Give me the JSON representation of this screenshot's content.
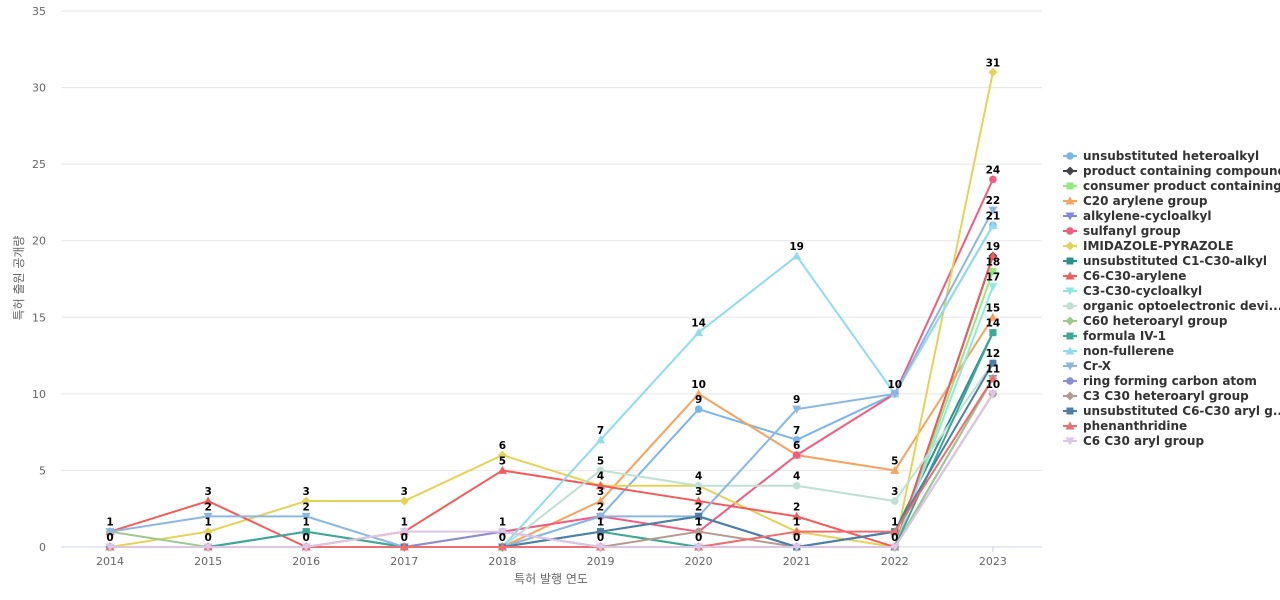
{
  "chart_data": {
    "type": "line",
    "title": "",
    "xlabel": "특허 발행 연도",
    "ylabel": "특허 출원 공개량",
    "x": [
      "2014",
      "2015",
      "2016",
      "2017",
      "2018",
      "2019",
      "2020",
      "2021",
      "2022",
      "2023"
    ],
    "ylim": [
      0,
      35
    ],
    "yticks": [
      0,
      5,
      10,
      15,
      20,
      25,
      30,
      35
    ],
    "grid": true,
    "legend": "right",
    "series": [
      {
        "name": "unsubstituted heteroalkyl",
        "color": "#7cb5ec",
        "marker": "circle",
        "values": [
          0,
          0,
          0,
          0,
          0,
          2,
          9,
          7,
          10,
          21
        ]
      },
      {
        "name": "product containing compound",
        "color": "#434348",
        "marker": "diamond",
        "values": [
          0,
          0,
          0,
          0,
          0,
          0,
          0,
          0,
          0,
          19
        ]
      },
      {
        "name": "consumer product containing...",
        "color": "#90ed7d",
        "marker": "square",
        "values": [
          0,
          0,
          0,
          0,
          0,
          0,
          0,
          0,
          0,
          18
        ]
      },
      {
        "name": "C20 arylene group",
        "color": "#f7a35c",
        "marker": "triangle",
        "values": [
          0,
          0,
          0,
          0,
          0,
          3,
          10,
          6,
          5,
          15
        ]
      },
      {
        "name": "alkylene-cycloalkyl",
        "color": "#8085e9",
        "marker": "triangle-down",
        "values": [
          0,
          0,
          0,
          0,
          0,
          0,
          0,
          0,
          0,
          11
        ]
      },
      {
        "name": "sulfanyl group",
        "color": "#f15c80",
        "marker": "circle",
        "values": [
          0,
          0,
          0,
          0,
          1,
          2,
          1,
          6,
          10,
          24
        ]
      },
      {
        "name": "IMIDAZOLE-PYRAZOLE",
        "color": "#e4d354",
        "marker": "diamond",
        "values": [
          0,
          1,
          3,
          3,
          6,
          4,
          4,
          1,
          0,
          31
        ]
      },
      {
        "name": "unsubstituted C1-C30-alkyl",
        "color": "#2b908f",
        "marker": "square",
        "values": [
          0,
          0,
          1,
          0,
          0,
          1,
          2,
          0,
          1,
          14
        ]
      },
      {
        "name": "C6-C30-arylene",
        "color": "#f45b5b",
        "marker": "triangle",
        "values": [
          1,
          3,
          0,
          1,
          5,
          4,
          3,
          2,
          0,
          19
        ]
      },
      {
        "name": "C3-C30-cycloalkyl",
        "color": "#91e8e1",
        "marker": "triangle-down",
        "values": [
          0,
          0,
          0,
          0,
          0,
          0,
          0,
          0,
          0,
          17
        ]
      },
      {
        "name": "organic optoelectronic devi...",
        "color": "#bfe0d3",
        "marker": "circle",
        "values": [
          0,
          0,
          0,
          0,
          0,
          5,
          4,
          4,
          3,
          12
        ]
      },
      {
        "name": "C60 heteroaryl group",
        "color": "#9fc98c",
        "marker": "diamond",
        "values": [
          1,
          0,
          0,
          0,
          0,
          1,
          0,
          0,
          0,
          11
        ]
      },
      {
        "name": "formula IV-1",
        "color": "#3fa898",
        "marker": "square",
        "values": [
          0,
          0,
          1,
          0,
          0,
          1,
          0,
          0,
          0,
          14
        ]
      },
      {
        "name": "non-fullerene",
        "color": "#8fdcec",
        "marker": "triangle",
        "values": [
          0,
          0,
          0,
          0,
          0,
          7,
          14,
          19,
          10,
          21
        ]
      },
      {
        "name": "Cr-X",
        "color": "#8ab8e3",
        "marker": "triangle-down",
        "values": [
          1,
          2,
          2,
          0,
          0,
          2,
          2,
          9,
          10,
          22
        ]
      },
      {
        "name": "ring forming carbon atom",
        "color": "#8a8fd3",
        "marker": "circle",
        "values": [
          0,
          0,
          0,
          0,
          1,
          0,
          0,
          0,
          0,
          10
        ]
      },
      {
        "name": "C3 C30 heteroaryl group",
        "color": "#b59a8f",
        "marker": "diamond",
        "values": [
          0,
          0,
          0,
          0,
          0,
          0,
          1,
          0,
          0,
          10
        ]
      },
      {
        "name": "unsubstituted C6-C30 aryl g...",
        "color": "#4f7fa8",
        "marker": "square",
        "values": [
          0,
          0,
          0,
          0,
          0,
          1,
          2,
          0,
          1,
          12
        ]
      },
      {
        "name": "phenanthridine",
        "color": "#ee6d6d",
        "marker": "triangle",
        "values": [
          0,
          0,
          0,
          0,
          0,
          0,
          0,
          1,
          1,
          11
        ]
      },
      {
        "name": "C6 C30 aryl group",
        "color": "#dcc5e6",
        "marker": "triangle-down",
        "values": [
          0,
          0,
          0,
          1,
          1,
          0,
          0,
          0,
          0,
          10
        ]
      }
    ],
    "data_labels": [
      {
        "x": "2014",
        "y": 1,
        "text": "1"
      },
      {
        "x": "2014",
        "y": 0,
        "text": "0"
      },
      {
        "x": "2015",
        "y": 3,
        "text": "3"
      },
      {
        "x": "2015",
        "y": 2,
        "text": "2"
      },
      {
        "x": "2015",
        "y": 1,
        "text": "1"
      },
      {
        "x": "2015",
        "y": 0,
        "text": "0"
      },
      {
        "x": "2016",
        "y": 3,
        "text": "3"
      },
      {
        "x": "2016",
        "y": 2,
        "text": "2"
      },
      {
        "x": "2016",
        "y": 1,
        "text": "1"
      },
      {
        "x": "2016",
        "y": 0,
        "text": "0"
      },
      {
        "x": "2017",
        "y": 3,
        "text": "3"
      },
      {
        "x": "2017",
        "y": 1,
        "text": "1"
      },
      {
        "x": "2017",
        "y": 0,
        "text": "0"
      },
      {
        "x": "2018",
        "y": 6,
        "text": "6"
      },
      {
        "x": "2018",
        "y": 5,
        "text": "5"
      },
      {
        "x": "2018",
        "y": 1,
        "text": "1"
      },
      {
        "x": "2018",
        "y": 0,
        "text": "0"
      },
      {
        "x": "2019",
        "y": 7,
        "text": "7"
      },
      {
        "x": "2019",
        "y": 5,
        "text": "5"
      },
      {
        "x": "2019",
        "y": 4,
        "text": "4"
      },
      {
        "x": "2019",
        "y": 3,
        "text": "3"
      },
      {
        "x": "2019",
        "y": 2,
        "text": "2"
      },
      {
        "x": "2019",
        "y": 1,
        "text": "1"
      },
      {
        "x": "2019",
        "y": 0,
        "text": "0"
      },
      {
        "x": "2020",
        "y": 14,
        "text": "14"
      },
      {
        "x": "2020",
        "y": 10,
        "text": "10"
      },
      {
        "x": "2020",
        "y": 9,
        "text": "9"
      },
      {
        "x": "2020",
        "y": 4,
        "text": "4"
      },
      {
        "x": "2020",
        "y": 3,
        "text": "3"
      },
      {
        "x": "2020",
        "y": 2,
        "text": "2"
      },
      {
        "x": "2020",
        "y": 1,
        "text": "1"
      },
      {
        "x": "2020",
        "y": 0,
        "text": "0"
      },
      {
        "x": "2021",
        "y": 19,
        "text": "19"
      },
      {
        "x": "2021",
        "y": 9,
        "text": "9"
      },
      {
        "x": "2021",
        "y": 7,
        "text": "7"
      },
      {
        "x": "2021",
        "y": 6,
        "text": "6"
      },
      {
        "x": "2021",
        "y": 4,
        "text": "4"
      },
      {
        "x": "2021",
        "y": 2,
        "text": "2"
      },
      {
        "x": "2021",
        "y": 1,
        "text": "1"
      },
      {
        "x": "2021",
        "y": 0,
        "text": "0"
      },
      {
        "x": "2022",
        "y": 10,
        "text": "10"
      },
      {
        "x": "2022",
        "y": 5,
        "text": "5"
      },
      {
        "x": "2022",
        "y": 3,
        "text": "3"
      },
      {
        "x": "2022",
        "y": 1,
        "text": "1"
      },
      {
        "x": "2022",
        "y": 0,
        "text": "0"
      },
      {
        "x": "2023",
        "y": 31,
        "text": "31"
      },
      {
        "x": "2023",
        "y": 24,
        "text": "24"
      },
      {
        "x": "2023",
        "y": 22,
        "text": "22"
      },
      {
        "x": "2023",
        "y": 21,
        "text": "21"
      },
      {
        "x": "2023",
        "y": 19,
        "text": "19"
      },
      {
        "x": "2023",
        "y": 18,
        "text": "18"
      },
      {
        "x": "2023",
        "y": 17,
        "text": "17"
      },
      {
        "x": "2023",
        "y": 15,
        "text": "15"
      },
      {
        "x": "2023",
        "y": 14,
        "text": "14"
      },
      {
        "x": "2023",
        "y": 12,
        "text": "12"
      },
      {
        "x": "2023",
        "y": 11,
        "text": "11"
      },
      {
        "x": "2023",
        "y": 10,
        "text": "10"
      }
    ]
  }
}
